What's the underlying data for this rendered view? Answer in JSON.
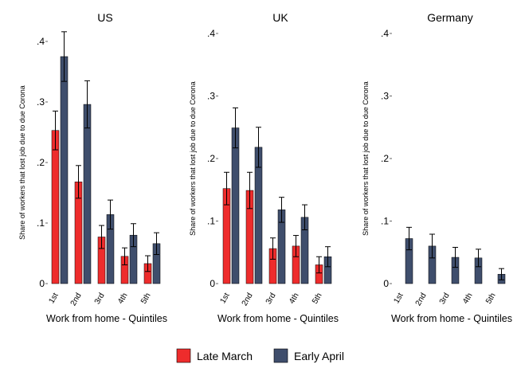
{
  "chart_data": [
    {
      "type": "bar",
      "title": "US",
      "categories": [
        "1st",
        "2nd",
        "3rd",
        "4th",
        "5th"
      ],
      "xlabel": "Work from home - Quintiles",
      "ylabel": "Share of workers that lost job due to due Corona",
      "ylim": [
        0,
        0.42
      ],
      "yticks": [
        ".4",
        ".3",
        ".2",
        ".1",
        "0"
      ],
      "series": [
        {
          "name": "Late March",
          "color": "#ee2c2c",
          "values": [
            0.253,
            0.168,
            0.077,
            0.045,
            0.033
          ],
          "ci_low": [
            0.221,
            0.141,
            0.058,
            0.031,
            0.02
          ],
          "ci_high": [
            0.285,
            0.195,
            0.096,
            0.059,
            0.046
          ]
        },
        {
          "name": "Early April",
          "color": "#3f4e6c",
          "values": [
            0.375,
            0.296,
            0.114,
            0.08,
            0.066
          ],
          "ci_low": [
            0.334,
            0.257,
            0.09,
            0.061,
            0.048
          ],
          "ci_high": [
            0.416,
            0.335,
            0.138,
            0.099,
            0.084
          ]
        }
      ]
    },
    {
      "type": "bar",
      "title": "UK",
      "categories": [
        "1st",
        "2nd",
        "3rd",
        "4th",
        "5th"
      ],
      "xlabel": "Work from home - Quintiles",
      "ylabel": "Share of workers that lost job due to due Corona",
      "ylim": [
        0,
        0.42
      ],
      "yticks": [
        ".4",
        ".3",
        ".2",
        ".1",
        "0"
      ],
      "series": [
        {
          "name": "Late March",
          "color": "#ee2c2c",
          "values": [
            0.152,
            0.149,
            0.056,
            0.06,
            0.03
          ],
          "ci_low": [
            0.126,
            0.12,
            0.039,
            0.043,
            0.017
          ],
          "ci_high": [
            0.178,
            0.178,
            0.073,
            0.077,
            0.043
          ]
        },
        {
          "name": "Early April",
          "color": "#3f4e6c",
          "values": [
            0.249,
            0.218,
            0.118,
            0.106,
            0.043
          ],
          "ci_low": [
            0.217,
            0.186,
            0.098,
            0.086,
            0.027
          ],
          "ci_high": [
            0.281,
            0.25,
            0.138,
            0.126,
            0.059
          ]
        }
      ]
    },
    {
      "type": "bar",
      "title": "Germany",
      "categories": [
        "1st",
        "2nd",
        "3rd",
        "4th",
        "5th"
      ],
      "xlabel": "Work from home - Quintiles",
      "ylabel": "Share of workers that lost job due to due Corona",
      "ylim": [
        0,
        0.42
      ],
      "yticks": [
        ".4",
        ".3",
        ".2",
        ".1",
        "0"
      ],
      "series": [
        {
          "name": "Late March",
          "color": "#ee2c2c",
          "values": [
            null,
            null,
            null,
            null,
            null
          ],
          "ci_low": [
            null,
            null,
            null,
            null,
            null
          ],
          "ci_high": [
            null,
            null,
            null,
            null,
            null
          ]
        },
        {
          "name": "Early April",
          "color": "#3f4e6c",
          "values": [
            0.072,
            0.06,
            0.042,
            0.041,
            0.015
          ],
          "ci_low": [
            0.054,
            0.041,
            0.026,
            0.027,
            0.006
          ],
          "ci_high": [
            0.09,
            0.079,
            0.058,
            0.055,
            0.024
          ]
        }
      ]
    }
  ],
  "legend": {
    "position": "bottom-center",
    "items": [
      {
        "label": "Late March",
        "color": "#ee2c2c"
      },
      {
        "label": "Early April",
        "color": "#3f4e6c"
      }
    ]
  }
}
